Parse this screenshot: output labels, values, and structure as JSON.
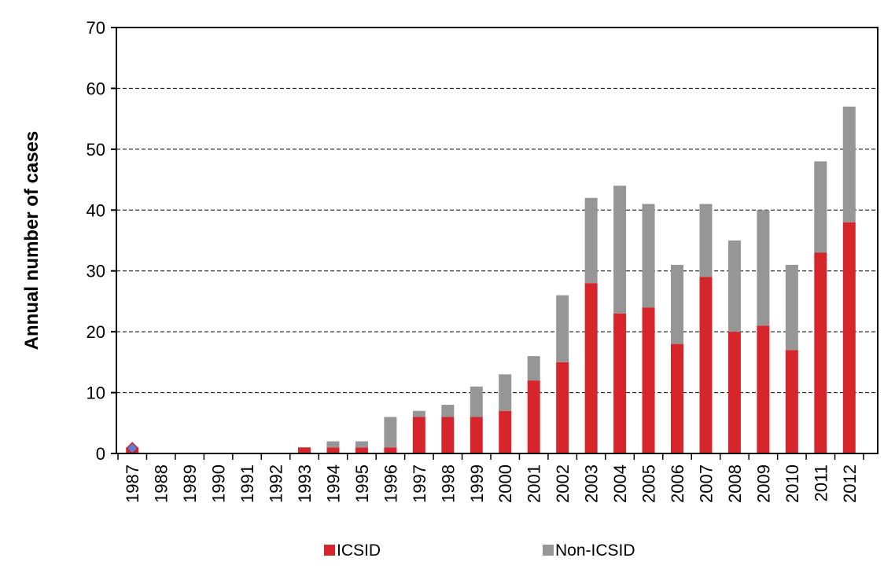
{
  "colors": {
    "icsid": "#d7252c",
    "non_icsid": "#969696",
    "grid": "#000000",
    "marker_fill": "#5b7fd6",
    "marker_stroke": "#c0272d"
  },
  "chart_data": {
    "type": "bar",
    "stacked": true,
    "title": "",
    "xlabel": "",
    "ylabel": "Annual number of cases",
    "ylim": [
      0,
      70
    ],
    "yticks": [
      0,
      10,
      20,
      30,
      40,
      50,
      60,
      70
    ],
    "grid": "horizontal dashed",
    "legend_position": "bottom",
    "categories": [
      "1987",
      "1988",
      "1989",
      "1990",
      "1991",
      "1992",
      "1993",
      "1994",
      "1995",
      "1996",
      "1997",
      "1998",
      "1999",
      "2000",
      "2001",
      "2002",
      "2003",
      "2004",
      "2005",
      "2006",
      "2007",
      "2008",
      "2009",
      "2010",
      "2011",
      "2012"
    ],
    "series": [
      {
        "name": "ICSID",
        "color": "#d7252c",
        "values": [
          1,
          0,
          0,
          0,
          0,
          0,
          1,
          1,
          1,
          1,
          6,
          6,
          6,
          7,
          12,
          15,
          28,
          23,
          24,
          18,
          29,
          20,
          21,
          17,
          33,
          38
        ]
      },
      {
        "name": "Non-ICSID",
        "color": "#969696",
        "values": [
          0,
          0,
          0,
          0,
          0,
          0,
          0,
          1,
          1,
          5,
          1,
          2,
          5,
          6,
          4,
          11,
          14,
          21,
          17,
          13,
          12,
          15,
          19,
          14,
          15,
          19
        ]
      }
    ],
    "markers": [
      {
        "category": "1987",
        "value": 1,
        "shape": "diamond"
      }
    ]
  }
}
